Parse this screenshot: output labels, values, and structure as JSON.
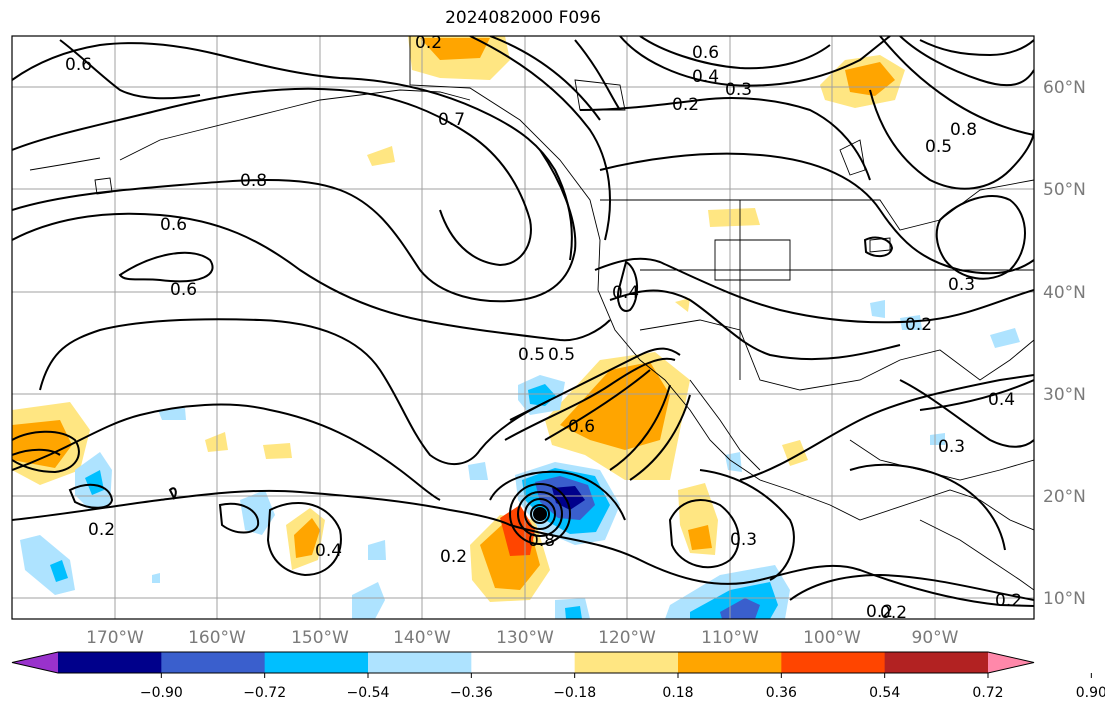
{
  "title": "2024082000 F096",
  "lat_labels": [
    "60°N",
    "50°N",
    "40°N",
    "30°N",
    "20°N",
    "10°N"
  ],
  "lon_labels": [
    "170°W",
    "160°W",
    "150°W",
    "140°W",
    "130°W",
    "120°W",
    "110°W",
    "100°W",
    "90°W"
  ],
  "colorbar": {
    "ticks": [
      "−0.90",
      "−0.72",
      "−0.54",
      "−0.36",
      "−0.18",
      "0.18",
      "0.36",
      "0.54",
      "0.72",
      "0.90"
    ],
    "colors": [
      "#9932cc",
      "#00008b",
      "#3a5fcd",
      "#00bfff",
      "#aee3ff",
      "#ffffff",
      "#ffe682",
      "#ffa500",
      "#ff4500",
      "#b22222",
      "#ff88aa"
    ]
  },
  "contour_labels": [
    "0.2",
    "0.6",
    "0.6",
    "0.4",
    "0.3",
    "0.2",
    "0.7",
    "0.8",
    "0.6",
    "0.6",
    "0.8",
    "0.5",
    "0.4",
    "0.3",
    "0.2",
    "0.3",
    "0.2",
    "0.5",
    "0.5",
    "0.6",
    "0.8",
    "0.4",
    "0.2",
    "0.2",
    "0.3",
    "0.2",
    "0.4",
    "0.2"
  ]
}
